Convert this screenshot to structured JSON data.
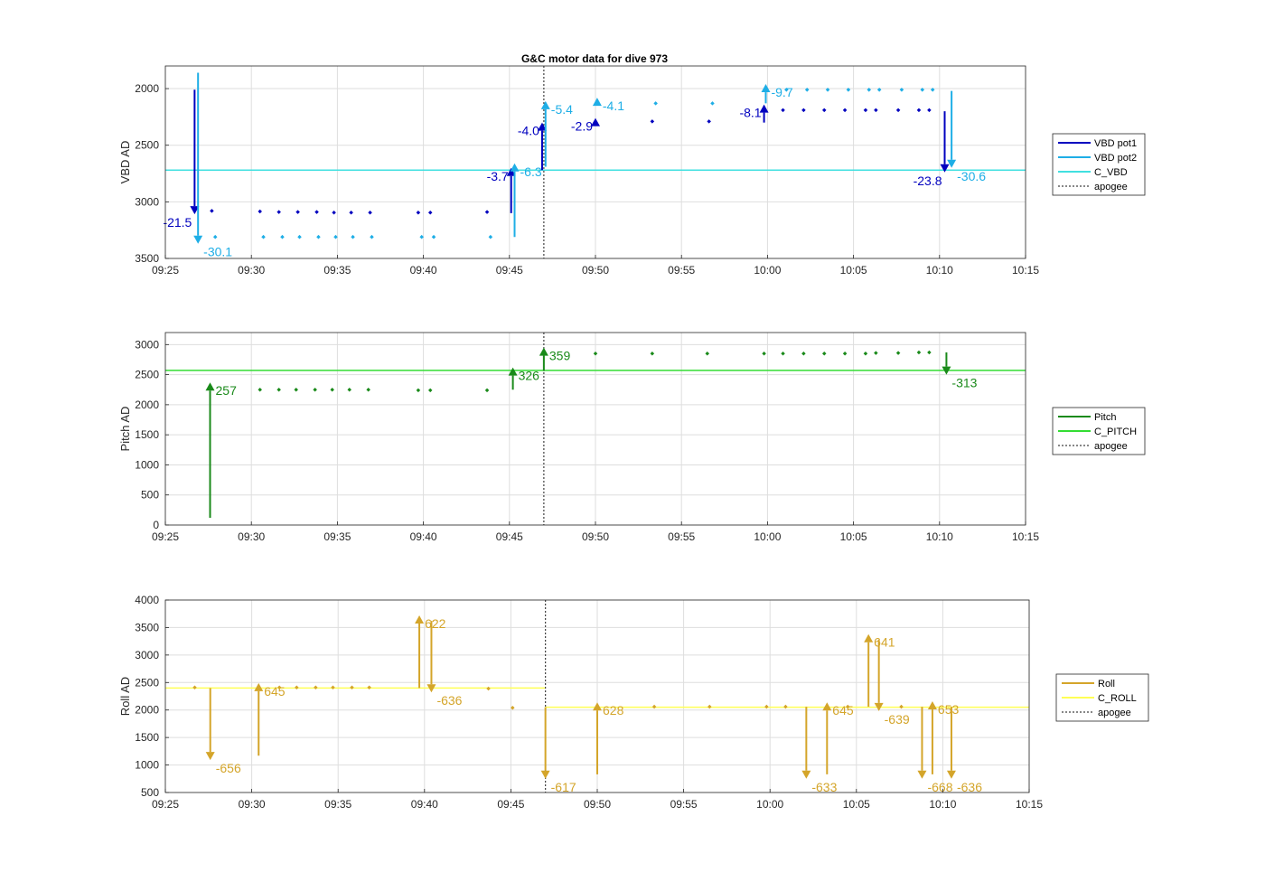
{
  "chart_data": {
    "title": "G&C motor data for dive 973",
    "type": "line",
    "x_ticks": [
      "09:25",
      "09:30",
      "09:35",
      "09:40",
      "09:45",
      "09:50",
      "09:55",
      "10:00",
      "10:05",
      "10:10",
      "10:15"
    ],
    "xlim": [
      "09:25",
      "10:15"
    ],
    "apogee": "09:47",
    "colors": {
      "vbd_pot1": "#0000bf",
      "vbd_pot2": "#1eaee6",
      "c_vbd": "#40e0e0",
      "pitch": "#1a8a1a",
      "c_pitch": "#33dd33",
      "roll": "#d4a52a",
      "c_roll": "#ffff55",
      "apogee": "#404040"
    },
    "panels": [
      {
        "id": "vbd",
        "ylabel": "VBD AD",
        "ylim": [
          3500,
          1800
        ],
        "y_ticks": [
          2000,
          2500,
          3000,
          3500
        ],
        "reversed": true,
        "legend": [
          "VBD pot1",
          "VBD pot2",
          "C_VBD",
          "apogee"
        ],
        "c_line": [
          {
            "from": "09:25",
            "to": "10:15",
            "y": 2720
          }
        ],
        "pot1_points": [
          [
            "09:27.7",
            3080
          ],
          [
            "09:30.5",
            3085
          ],
          [
            "09:31.6",
            3090
          ],
          [
            "09:32.7",
            3090
          ],
          [
            "09:33.8",
            3090
          ],
          [
            "09:34.8",
            3095
          ],
          [
            "09:35.8",
            3095
          ],
          [
            "09:36.9",
            3095
          ],
          [
            "09:39.7",
            3095
          ],
          [
            "09:40.4",
            3095
          ],
          [
            "09:43.7",
            3090
          ],
          [
            "09:53.3",
            2290
          ],
          [
            "09:56.6",
            2290
          ],
          [
            "10:00.9",
            2190
          ],
          [
            "10:02.1",
            2190
          ],
          [
            "10:03.3",
            2190
          ],
          [
            "10:04.5",
            2190
          ],
          [
            "10:05.7",
            2190
          ],
          [
            "10:06.3",
            2190
          ],
          [
            "10:07.6",
            2190
          ],
          [
            "10:08.8",
            2190
          ],
          [
            "10:09.4",
            2190
          ]
        ],
        "pot2_points": [
          [
            "09:27.9",
            3310
          ],
          [
            "09:30.7",
            3310
          ],
          [
            "09:31.8",
            3310
          ],
          [
            "09:32.8",
            3310
          ],
          [
            "09:33.9",
            3310
          ],
          [
            "09:34.9",
            3310
          ],
          [
            "09:35.9",
            3310
          ],
          [
            "09:37.0",
            3310
          ],
          [
            "09:39.9",
            3310
          ],
          [
            "09:40.6",
            3310
          ],
          [
            "09:43.9",
            3310
          ],
          [
            "09:53.5",
            2130
          ],
          [
            "09:56.8",
            2130
          ],
          [
            "10:01.1",
            2010
          ],
          [
            "10:02.3",
            2010
          ],
          [
            "10:03.5",
            2010
          ],
          [
            "10:04.7",
            2010
          ],
          [
            "10:05.9",
            2010
          ],
          [
            "10:06.5",
            2010
          ],
          [
            "10:07.8",
            2010
          ],
          [
            "10:09.0",
            2010
          ],
          [
            "10:09.6",
            2010
          ]
        ],
        "arrows": [
          {
            "series": "pot1",
            "t": "09:26.7",
            "y0": 2010,
            "y1": 3110,
            "label": "-21.5",
            "label_side": "left"
          },
          {
            "series": "pot2",
            "t": "09:26.9",
            "y0": 1860,
            "y1": 3370,
            "label": "-30.1",
            "label_side": "right"
          },
          {
            "series": "pot1",
            "t": "09:45.1",
            "y0": 3100,
            "y1": 2700,
            "label": "-3.7",
            "label_side": "left"
          },
          {
            "series": "pot2",
            "t": "09:45.3",
            "y0": 3310,
            "y1": 2660,
            "label": "-6.3",
            "label_side": "right"
          },
          {
            "series": "pot1",
            "t": "09:46.9",
            "y0": 2720,
            "y1": 2300,
            "label": "-4.0",
            "label_side": "left"
          },
          {
            "series": "pot2",
            "t": "09:47.1",
            "y0": 2690,
            "y1": 2110,
            "label": "-5.4",
            "label_side": "right"
          },
          {
            "series": "pot1",
            "t": "09:50.0",
            "y0": 2290,
            "y1": 2260,
            "label": "-2.9",
            "label_side": "left"
          },
          {
            "series": "pot2",
            "t": "09:50.1",
            "y0": 2120,
            "y1": 2080,
            "label": "-4.1",
            "label_side": "right"
          },
          {
            "series": "pot1",
            "t": "09:59.8",
            "y0": 2300,
            "y1": 2140,
            "label": "-8.1",
            "label_side": "left"
          },
          {
            "series": "pot2",
            "t": "09:59.9",
            "y0": 2130,
            "y1": 1960,
            "label": "-9.7",
            "label_side": "right"
          },
          {
            "series": "pot1",
            "t": "10:10.3",
            "y0": 2200,
            "y1": 2740,
            "label": "-23.8",
            "label_side": "left"
          },
          {
            "series": "pot2",
            "t": "10:10.7",
            "y0": 2020,
            "y1": 2700,
            "label": "-30.6",
            "label_side": "right"
          }
        ]
      },
      {
        "id": "pitch",
        "ylabel": "Pitch AD",
        "ylim": [
          0,
          3200
        ],
        "y_ticks": [
          0,
          500,
          1000,
          1500,
          2000,
          2500,
          3000
        ],
        "reversed": false,
        "legend": [
          "Pitch",
          "C_PITCH",
          "apogee"
        ],
        "c_line": [
          {
            "from": "09:25",
            "to": "10:15",
            "y": 2570
          }
        ],
        "points": [
          [
            "09:30.5",
            2250
          ],
          [
            "09:31.6",
            2250
          ],
          [
            "09:32.6",
            2250
          ],
          [
            "09:33.7",
            2250
          ],
          [
            "09:34.7",
            2250
          ],
          [
            "09:35.7",
            2250
          ],
          [
            "09:36.8",
            2250
          ],
          [
            "09:39.7",
            2240
          ],
          [
            "09:40.4",
            2240
          ],
          [
            "09:43.7",
            2240
          ],
          [
            "09:50.0",
            2850
          ],
          [
            "09:53.3",
            2850
          ],
          [
            "09:56.5",
            2850
          ],
          [
            "09:59.8",
            2850
          ],
          [
            "10:00.9",
            2850
          ],
          [
            "10:02.1",
            2850
          ],
          [
            "10:03.3",
            2850
          ],
          [
            "10:04.5",
            2850
          ],
          [
            "10:05.7",
            2850
          ],
          [
            "10:06.3",
            2860
          ],
          [
            "10:07.6",
            2860
          ],
          [
            "10:08.8",
            2870
          ],
          [
            "10:09.4",
            2870
          ]
        ],
        "arrows": [
          {
            "series": "pitch",
            "t": "09:27.6",
            "y0": 120,
            "y1": 2370,
            "label": "257",
            "label_side": "right"
          },
          {
            "series": "pitch",
            "t": "09:45.2",
            "y0": 2250,
            "y1": 2620,
            "label": "326",
            "label_side": "right"
          },
          {
            "series": "pitch",
            "t": "09:47.0",
            "y0": 2560,
            "y1": 2950,
            "label": "359",
            "label_side": "right"
          },
          {
            "series": "pitch",
            "t": "10:10.4",
            "y0": 2870,
            "y1": 2500,
            "label": "-313",
            "label_side": "right"
          }
        ]
      },
      {
        "id": "roll",
        "ylabel": "Roll AD",
        "ylim": [
          500,
          4000
        ],
        "y_ticks": [
          500,
          1000,
          1500,
          2000,
          2500,
          3000,
          3500,
          4000
        ],
        "reversed": false,
        "legend": [
          "Roll",
          "C_ROLL",
          "apogee"
        ],
        "c_line": [
          {
            "from": "09:25",
            "to": "09:47",
            "y": 2400
          },
          {
            "from": "09:47",
            "to": "10:15",
            "y": 2050
          }
        ],
        "points": [
          [
            "09:26.7",
            2410
          ],
          [
            "09:31.6",
            2410
          ],
          [
            "09:32.6",
            2410
          ],
          [
            "09:33.7",
            2410
          ],
          [
            "09:34.7",
            2410
          ],
          [
            "09:35.8",
            2410
          ],
          [
            "09:36.8",
            2410
          ],
          [
            "09:43.7",
            2390
          ],
          [
            "09:45.1",
            2040
          ],
          [
            "09:53.3",
            2060
          ],
          [
            "09:56.5",
            2060
          ],
          [
            "09:59.8",
            2060
          ],
          [
            "10:00.9",
            2060
          ],
          [
            "10:04.5",
            2060
          ],
          [
            "10:07.6",
            2060
          ]
        ],
        "arrows": [
          {
            "series": "roll",
            "t": "09:27.6",
            "y0": 2400,
            "y1": 1090,
            "label": "-656",
            "label_side": "right"
          },
          {
            "series": "roll",
            "t": "09:30.4",
            "y0": 1170,
            "y1": 2490,
            "label": "645",
            "label_side": "right"
          },
          {
            "series": "roll",
            "t": "09:39.7",
            "y0": 2400,
            "y1": 3720,
            "label": "622",
            "label_side": "right"
          },
          {
            "series": "roll",
            "t": "09:40.4",
            "y0": 3620,
            "y1": 2320,
            "label": "-636",
            "label_side": "right"
          },
          {
            "series": "roll",
            "t": "09:47.0",
            "y0": 2050,
            "y1": 750,
            "label": "-617",
            "label_side": "right"
          },
          {
            "series": "roll",
            "t": "09:50.0",
            "y0": 830,
            "y1": 2140,
            "label": "628",
            "label_side": "right"
          },
          {
            "series": "roll",
            "t": "10:02.1",
            "y0": 2060,
            "y1": 750,
            "label": "-633",
            "label_side": "right"
          },
          {
            "series": "roll",
            "t": "10:03.3",
            "y0": 830,
            "y1": 2140,
            "label": "645",
            "label_side": "right"
          },
          {
            "series": "roll",
            "t": "10:05.7",
            "y0": 2060,
            "y1": 3380,
            "label": "641",
            "label_side": "right"
          },
          {
            "series": "roll",
            "t": "10:06.3",
            "y0": 3280,
            "y1": 1980,
            "label": "-639",
            "label_side": "right"
          },
          {
            "series": "roll",
            "t": "10:08.8",
            "y0": 2060,
            "y1": 750,
            "label": "-668",
            "label_side": "right"
          },
          {
            "series": "roll",
            "t": "10:09.4",
            "y0": 830,
            "y1": 2160,
            "label": "653",
            "label_side": "right"
          },
          {
            "series": "roll",
            "t": "10:10.5",
            "y0": 2060,
            "y1": 750,
            "label": "-636",
            "label_side": "right"
          }
        ]
      }
    ]
  }
}
